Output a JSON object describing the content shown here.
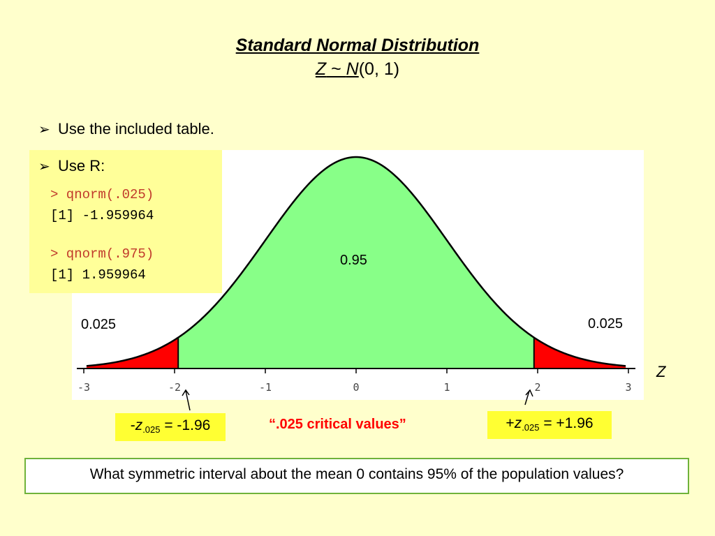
{
  "title": "Standard Normal Distribution",
  "subtitle": {
    "z": "Z",
    "tilde": " ~ ",
    "n": "N",
    "params": "(0, 1)"
  },
  "bullets": [
    {
      "marker": "➢",
      "text": "Use the included table."
    },
    {
      "marker": "➢",
      "text": "Use R:"
    }
  ],
  "r_code": [
    {
      "command": "> qnorm(.025)",
      "result": "[1] -1.959964"
    },
    {
      "command": "> qnorm(.975)",
      "result": "[1] 1.959964"
    }
  ],
  "critical_label": "“.025 critical values”",
  "left_critical": {
    "sign": "-",
    "var": "z",
    "sub": ".025",
    "rest": " = -1.96"
  },
  "right_critical": {
    "sign": "+",
    "var": "z",
    "sub": ".025",
    "rest": " = +1.96"
  },
  "question": "What symmetric interval about the mean 0 contains 95% of the population values?",
  "colors": {
    "center_fill": "#88ff88",
    "tail_fill": "#ff0000",
    "background": "#ffffcc",
    "box_yellow": "#ffff33",
    "border_green": "#6fb23a"
  },
  "chart_data": {
    "type": "area",
    "distribution": "standard normal",
    "xlabel": "Z",
    "xlim": [
      -3,
      3
    ],
    "x_ticks": [
      "-3",
      "-2",
      "-1",
      "0",
      "1",
      "2",
      "3"
    ],
    "x_tick_values": [
      -3,
      -2,
      -1,
      0,
      1,
      2,
      3
    ],
    "regions": [
      {
        "from": -3,
        "to": -1.96,
        "area_label": "0.025",
        "color": "#ff0000"
      },
      {
        "from": -1.96,
        "to": 1.96,
        "area_label": "0.95",
        "color": "#88ff88"
      },
      {
        "from": 1.96,
        "to": 3,
        "area_label": "0.025",
        "color": "#ff0000"
      }
    ],
    "critical_values": [
      -1.96,
      1.96
    ]
  }
}
